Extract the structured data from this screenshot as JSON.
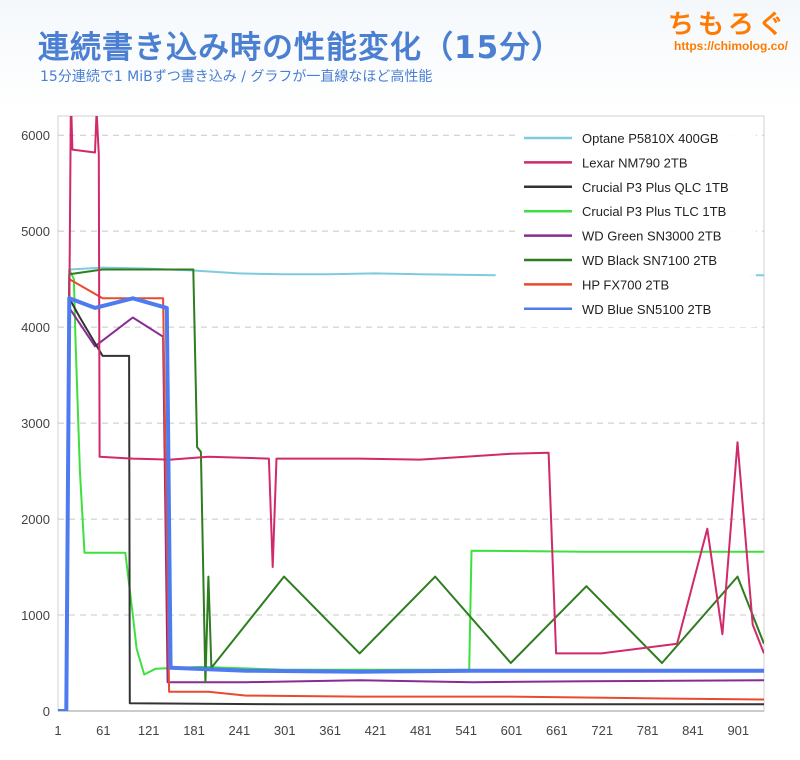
{
  "header": {
    "title": "連続書き込み時の性能変化（15分）",
    "subtitle": "15分連続で1 MiBずつ書き込み / グラフが一直線なほど高性能"
  },
  "logo": {
    "brand": "ちもろぐ",
    "url": "https://chimolog.co/"
  },
  "chart_data": {
    "type": "line",
    "title": "連続書き込み時の性能変化（15分）",
    "subtitle": "15分連続で1 MiBずつ書き込み / グラフが一直線なほど高性能",
    "xlabel": "",
    "ylabel": "",
    "xlim": [
      1,
      935
    ],
    "ylim": [
      0,
      6200
    ],
    "x_ticks": [
      1,
      61,
      121,
      181,
      241,
      301,
      361,
      421,
      481,
      541,
      601,
      661,
      721,
      781,
      841,
      901
    ],
    "y_ticks": [
      0,
      1000,
      2000,
      3000,
      4000,
      5000,
      6000
    ],
    "grid": "horizontal dashed",
    "legend_position": "top-right",
    "series": [
      {
        "name": "Optane P5810X 400GB",
        "color": "#7ecbdf",
        "points": [
          [
            1,
            0
          ],
          [
            12,
            0
          ],
          [
            16,
            4600
          ],
          [
            60,
            4620
          ],
          [
            120,
            4610
          ],
          [
            180,
            4590
          ],
          [
            240,
            4560
          ],
          [
            300,
            4550
          ],
          [
            360,
            4550
          ],
          [
            420,
            4560
          ],
          [
            480,
            4550
          ],
          [
            580,
            4540
          ],
          [
            590,
            null
          ],
          [
            915,
            null
          ],
          [
            916,
            4540
          ],
          [
            935,
            4540
          ]
        ]
      },
      {
        "name": "Lexar NM790 2TB",
        "color": "#d02a6a",
        "points": [
          [
            1,
            0
          ],
          [
            12,
            0
          ],
          [
            18,
            6400
          ],
          [
            20,
            5850
          ],
          [
            50,
            5820
          ],
          [
            52,
            6250
          ],
          [
            55,
            5800
          ],
          [
            56,
            2650
          ],
          [
            100,
            2630
          ],
          [
            150,
            2620
          ],
          [
            200,
            2650
          ],
          [
            280,
            2630
          ],
          [
            285,
            1500
          ],
          [
            290,
            2630
          ],
          [
            400,
            2630
          ],
          [
            480,
            2620
          ],
          [
            540,
            2650
          ],
          [
            600,
            2680
          ],
          [
            650,
            2690
          ],
          [
            660,
            600
          ],
          [
            720,
            600
          ],
          [
            820,
            700
          ],
          [
            860,
            1900
          ],
          [
            880,
            800
          ],
          [
            900,
            2800
          ],
          [
            920,
            900
          ],
          [
            935,
            600
          ]
        ]
      },
      {
        "name": "Crucial P3 Plus QLC 1TB",
        "color": "#333333",
        "points": [
          [
            1,
            0
          ],
          [
            12,
            0
          ],
          [
            16,
            4300
          ],
          [
            30,
            4100
          ],
          [
            60,
            3700
          ],
          [
            95,
            3700
          ],
          [
            96,
            80
          ],
          [
            300,
            70
          ],
          [
            600,
            70
          ],
          [
            935,
            70
          ]
        ]
      },
      {
        "name": "Crucial P3 Plus TLC 1TB",
        "color": "#3ee03e",
        "points": [
          [
            1,
            0
          ],
          [
            12,
            0
          ],
          [
            16,
            4600
          ],
          [
            22,
            4500
          ],
          [
            24,
            3900
          ],
          [
            30,
            2500
          ],
          [
            36,
            1650
          ],
          [
            90,
            1650
          ],
          [
            100,
            1000
          ],
          [
            105,
            650
          ],
          [
            115,
            380
          ],
          [
            130,
            440
          ],
          [
            190,
            460
          ],
          [
            300,
            430
          ],
          [
            400,
            430
          ],
          [
            545,
            430
          ],
          [
            548,
            1670
          ],
          [
            700,
            1660
          ],
          [
            800,
            1660
          ],
          [
            935,
            1660
          ]
        ]
      },
      {
        "name": "WD Green SN3000 2TB",
        "color": "#882b93",
        "points": [
          [
            1,
            0
          ],
          [
            12,
            0
          ],
          [
            16,
            4200
          ],
          [
            50,
            3800
          ],
          [
            100,
            4100
          ],
          [
            140,
            3900
          ],
          [
            146,
            300
          ],
          [
            250,
            300
          ],
          [
            400,
            320
          ],
          [
            550,
            300
          ],
          [
            700,
            310
          ],
          [
            935,
            320
          ]
        ]
      },
      {
        "name": "WD Black SN7100 2TB",
        "color": "#2e7d1f",
        "points": [
          [
            1,
            0
          ],
          [
            12,
            0
          ],
          [
            16,
            4550
          ],
          [
            60,
            4600
          ],
          [
            120,
            4600
          ],
          [
            180,
            4600
          ],
          [
            185,
            2750
          ],
          [
            190,
            2700
          ],
          [
            196,
            300
          ],
          [
            200,
            1400
          ],
          [
            204,
            450
          ],
          [
            300,
            1400
          ],
          [
            400,
            600
          ],
          [
            500,
            1400
          ],
          [
            600,
            500
          ],
          [
            700,
            1300
          ],
          [
            800,
            500
          ],
          [
            900,
            1400
          ],
          [
            935,
            700
          ]
        ]
      },
      {
        "name": "HP FX700 2TB",
        "color": "#e84b2f",
        "points": [
          [
            1,
            0
          ],
          [
            12,
            0
          ],
          [
            16,
            4500
          ],
          [
            60,
            4300
          ],
          [
            110,
            4300
          ],
          [
            140,
            4300
          ],
          [
            148,
            200
          ],
          [
            200,
            200
          ],
          [
            250,
            160
          ],
          [
            400,
            150
          ],
          [
            600,
            150
          ],
          [
            800,
            130
          ],
          [
            935,
            120
          ]
        ]
      },
      {
        "name": "WD Blue SN5100 2TB",
        "color": "#4e7bf0",
        "points": [
          [
            1,
            0
          ],
          [
            12,
            0
          ],
          [
            16,
            4300
          ],
          [
            50,
            4200
          ],
          [
            100,
            4300
          ],
          [
            145,
            4200
          ],
          [
            150,
            450
          ],
          [
            250,
            420
          ],
          [
            400,
            410
          ],
          [
            550,
            420
          ],
          [
            700,
            420
          ],
          [
            935,
            420
          ]
        ]
      }
    ]
  }
}
